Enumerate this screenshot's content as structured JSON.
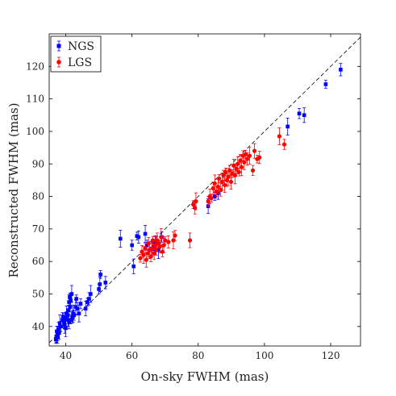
{
  "chart_data": {
    "type": "scatter",
    "xlabel": "On-sky FWHM (mas)",
    "ylabel": "Reconstructed FWHM (mas)",
    "xlim": [
      35,
      129
    ],
    "ylim": [
      34,
      130
    ],
    "xticks": [
      40,
      60,
      80,
      100,
      120
    ],
    "yticks": [
      40,
      50,
      60,
      70,
      80,
      90,
      100,
      110,
      120
    ],
    "grid": false,
    "legend_position": "top-left",
    "reference_line": "y = x (dashed)",
    "series": [
      {
        "name": "NGS",
        "color": "#0000ff",
        "marker": "square",
        "points": [
          [
            37.0,
            36.0
          ],
          [
            37.2,
            37.0
          ],
          [
            37.5,
            37.5
          ],
          [
            37.3,
            38.5
          ],
          [
            37.8,
            39.0
          ],
          [
            37.6,
            36.8
          ],
          [
            38.0,
            38.0
          ],
          [
            38.2,
            41.0
          ],
          [
            38.5,
            40.0
          ],
          [
            39.0,
            42.0
          ],
          [
            39.2,
            43.0
          ],
          [
            39.5,
            41.5
          ],
          [
            39.7,
            40.5
          ],
          [
            40.0,
            42.5
          ],
          [
            40.2,
            44.0
          ],
          [
            40.5,
            43.5
          ],
          [
            40.7,
            42.0
          ],
          [
            40.0,
            39.5
          ],
          [
            40.8,
            45.0
          ],
          [
            41.0,
            47.5
          ],
          [
            41.2,
            49.0
          ],
          [
            41.5,
            48.0
          ],
          [
            41.8,
            50.0
          ],
          [
            41.3,
            46.0
          ],
          [
            41.0,
            41.5
          ],
          [
            41.5,
            42.0
          ],
          [
            42.0,
            43.0
          ],
          [
            42.2,
            44.0
          ],
          [
            42.5,
            43.5
          ],
          [
            43.0,
            46.0
          ],
          [
            43.2,
            48.5
          ],
          [
            43.5,
            45.5
          ],
          [
            44.0,
            44.0
          ],
          [
            44.5,
            47.0
          ],
          [
            46.0,
            45.5
          ],
          [
            46.5,
            47.5
          ],
          [
            47.0,
            48.5
          ],
          [
            47.5,
            50.0
          ],
          [
            50.0,
            51.5
          ],
          [
            50.3,
            53.0
          ],
          [
            50.5,
            56.0
          ],
          [
            52.0,
            53.5
          ],
          [
            56.5,
            67.0
          ],
          [
            60.0,
            65.0
          ],
          [
            60.5,
            58.5
          ],
          [
            61.5,
            67.8
          ],
          [
            62.0,
            67.5
          ],
          [
            64.0,
            68.5
          ],
          [
            64.5,
            65.0
          ],
          [
            66.0,
            64.0
          ],
          [
            66.5,
            64.5
          ],
          [
            67.0,
            66.0
          ],
          [
            68.0,
            63.5
          ],
          [
            69.0,
            67.5
          ],
          [
            83.0,
            77.0
          ],
          [
            85.0,
            80.0
          ],
          [
            86.0,
            81.0
          ],
          [
            107.0,
            101.5
          ],
          [
            110.5,
            105.5
          ],
          [
            112.0,
            105.0
          ],
          [
            118.5,
            114.5
          ],
          [
            123.0,
            119.0
          ]
        ]
      },
      {
        "name": "LGS",
        "color": "#ff0000",
        "marker": "circle",
        "points": [
          [
            62.5,
            61.0
          ],
          [
            63.0,
            63.0
          ],
          [
            63.5,
            62.0
          ],
          [
            64.0,
            64.0
          ],
          [
            64.3,
            60.5
          ],
          [
            64.8,
            62.5
          ],
          [
            65.0,
            65.5
          ],
          [
            65.3,
            63.5
          ],
          [
            65.7,
            61.5
          ],
          [
            66.0,
            64.0
          ],
          [
            66.3,
            66.5
          ],
          [
            66.7,
            62.5
          ],
          [
            67.0,
            65.0
          ],
          [
            67.3,
            63.5
          ],
          [
            67.6,
            66.5
          ],
          [
            68.0,
            65.5
          ],
          [
            68.4,
            64.5
          ],
          [
            68.8,
            67.5
          ],
          [
            69.2,
            63.0
          ],
          [
            69.6,
            65.0
          ],
          [
            70.0,
            66.5
          ],
          [
            71.0,
            66.0
          ],
          [
            72.5,
            66.5
          ],
          [
            73.0,
            68.0
          ],
          [
            77.5,
            66.5
          ],
          [
            78.5,
            77.5
          ],
          [
            79.0,
            76.5
          ],
          [
            79.3,
            78.5
          ],
          [
            83.0,
            78.5
          ],
          [
            83.5,
            80.0
          ],
          [
            84.0,
            79.5
          ],
          [
            84.5,
            82.5
          ],
          [
            85.0,
            84.0
          ],
          [
            85.5,
            81.5
          ],
          [
            86.0,
            83.0
          ],
          [
            86.3,
            85.5
          ],
          [
            86.8,
            82.0
          ],
          [
            87.2,
            84.5
          ],
          [
            87.6,
            86.5
          ],
          [
            88.0,
            83.5
          ],
          [
            88.3,
            87.5
          ],
          [
            88.7,
            85.0
          ],
          [
            89.1,
            86.0
          ],
          [
            89.5,
            88.0
          ],
          [
            89.9,
            84.5
          ],
          [
            90.3,
            87.0
          ],
          [
            90.7,
            89.5
          ],
          [
            91.1,
            86.5
          ],
          [
            91.5,
            88.5
          ],
          [
            91.9,
            90.0
          ],
          [
            92.3,
            87.5
          ],
          [
            92.7,
            91.0
          ],
          [
            93.1,
            89.0
          ],
          [
            93.5,
            92.5
          ],
          [
            93.9,
            90.5
          ],
          [
            94.3,
            93.0
          ],
          [
            94.8,
            91.5
          ],
          [
            95.5,
            92.5
          ],
          [
            96.5,
            88.0
          ],
          [
            97.0,
            94.0
          ],
          [
            97.8,
            91.5
          ],
          [
            98.5,
            92.0
          ],
          [
            104.5,
            98.5
          ],
          [
            106.0,
            96.0
          ]
        ]
      }
    ]
  }
}
